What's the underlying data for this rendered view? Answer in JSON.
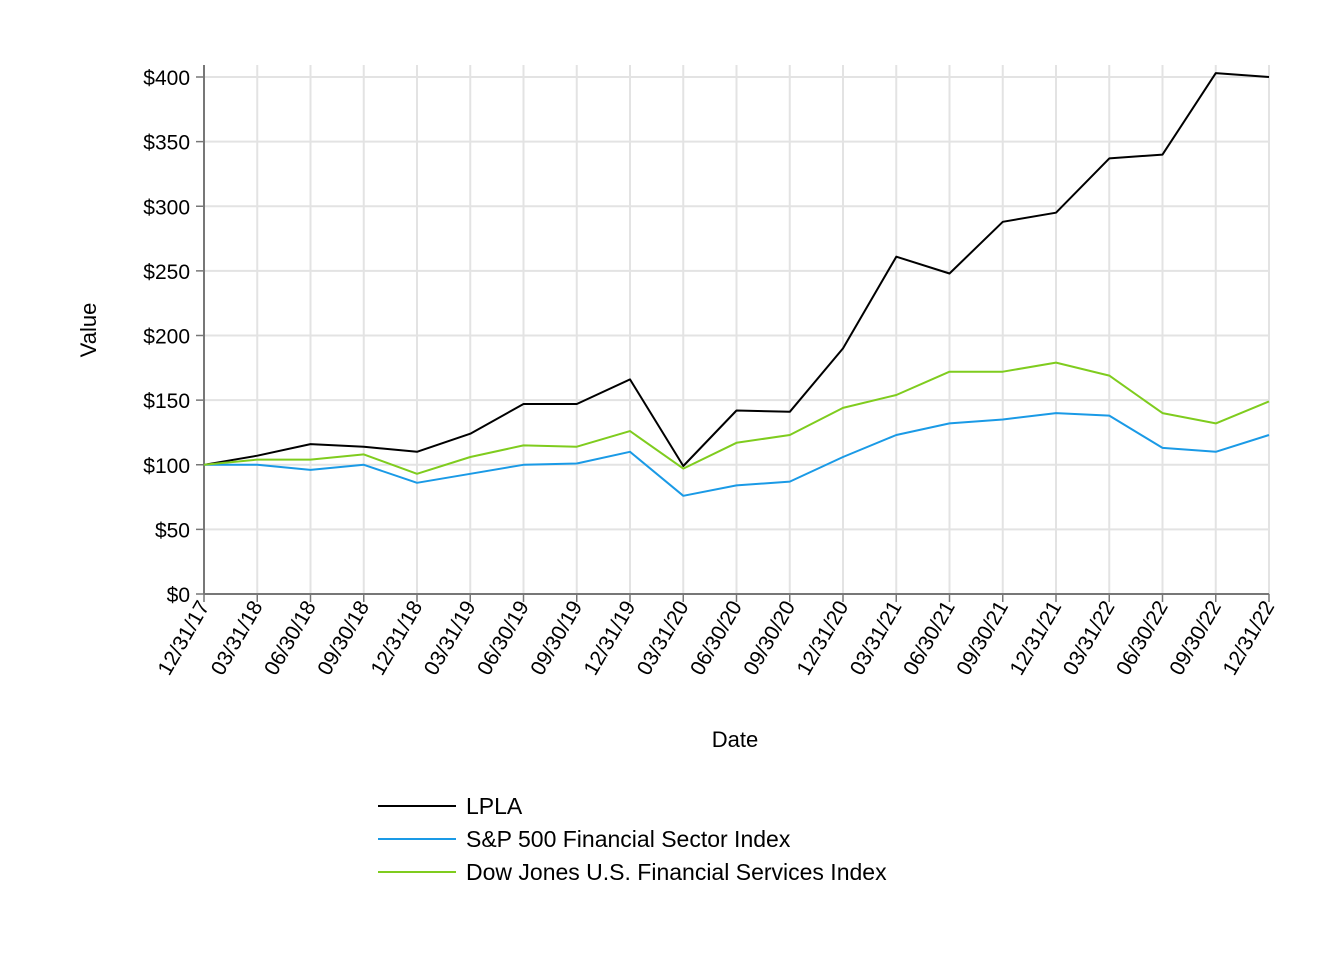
{
  "chart_data": {
    "type": "line",
    "title": "",
    "xlabel": "Date",
    "ylabel": "Value",
    "ylim": [
      0,
      400
    ],
    "ytick_step": 50,
    "ytick_prefix": "$",
    "grid": true,
    "legend_position": "bottom-center",
    "categories": [
      "12/31/17",
      "03/31/18",
      "06/30/18",
      "09/30/18",
      "12/31/18",
      "03/31/19",
      "06/30/19",
      "09/30/19",
      "12/31/19",
      "03/31/20",
      "06/30/20",
      "09/30/20",
      "12/31/20",
      "03/31/21",
      "06/30/21",
      "09/30/21",
      "12/31/21",
      "03/31/22",
      "06/30/22",
      "09/30/22",
      "12/31/22"
    ],
    "series": [
      {
        "name": "LPLA",
        "color": "#000000",
        "values": [
          100,
          107,
          116,
          114,
          110,
          124,
          147,
          147,
          166,
          99,
          142,
          141,
          190,
          261,
          248,
          288,
          295,
          337,
          340,
          403,
          400
        ]
      },
      {
        "name": "S&P 500 Financial Sector Index",
        "color": "#1a9ae6",
        "values": [
          100,
          100,
          96,
          100,
          86,
          93,
          100,
          101,
          110,
          76,
          84,
          87,
          106,
          123,
          132,
          135,
          140,
          138,
          113,
          110,
          123
        ]
      },
      {
        "name": "Dow Jones U.S. Financial Services Index",
        "color": "#7fcc1e",
        "values": [
          100,
          104,
          104,
          108,
          93,
          106,
          115,
          114,
          126,
          97,
          117,
          123,
          144,
          154,
          172,
          172,
          179,
          169,
          140,
          132,
          149
        ]
      }
    ]
  }
}
